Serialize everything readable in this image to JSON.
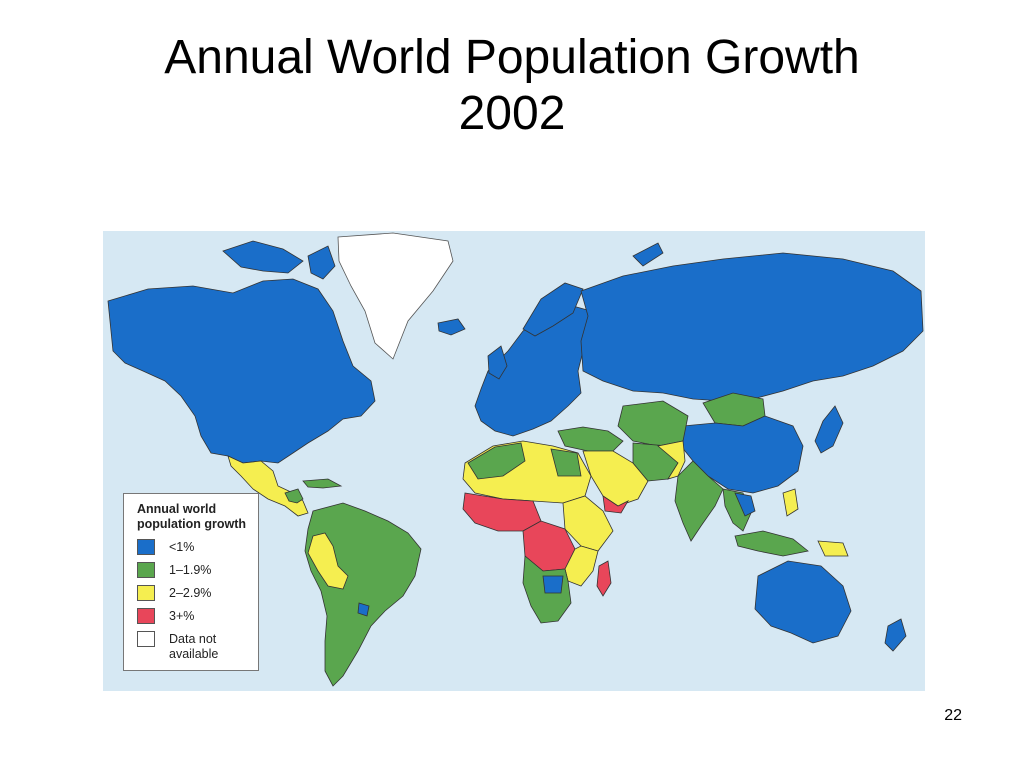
{
  "slide": {
    "title_line1": "Annual World Population Growth",
    "title_line2": "2002",
    "page_number": "22"
  },
  "legend": {
    "title_line1": "Annual world",
    "title_line2": "population growth",
    "items": [
      {
        "label": "<1%",
        "color": "#1a6ec9"
      },
      {
        "label": "1–1.9%",
        "color": "#5aa64e"
      },
      {
        "label": "2–2.9%",
        "color": "#f5ee50"
      },
      {
        "label": "3+%",
        "color": "#e8465a"
      },
      {
        "label": "Data not available",
        "color": "#ffffff"
      }
    ]
  },
  "colors": {
    "ocean": "#d6e8f3",
    "lt1": "#1a6ec9",
    "g1to2": "#5aa64e",
    "g2to3": "#f5ee50",
    "g3plus": "#e8465a",
    "na": "#ffffff"
  }
}
